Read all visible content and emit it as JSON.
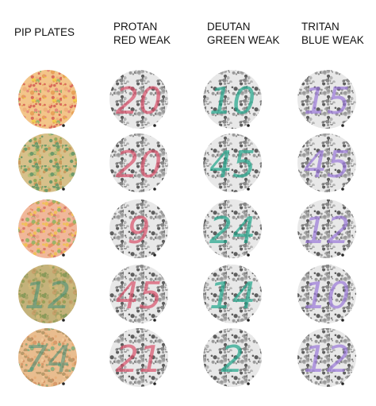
{
  "headers": [
    [
      "PIP  PLATES"
    ],
    [
      "PROTAN",
      "RED WEAK"
    ],
    [
      "DEUTAN",
      "GREEN WEAK"
    ],
    [
      "TRITAN",
      "BLUE WEAK"
    ]
  ],
  "rows": [
    [
      null,
      "20",
      "10",
      "15"
    ],
    [
      null,
      "20",
      "45",
      "45"
    ],
    [
      null,
      "9",
      "24",
      "12"
    ],
    [
      "12",
      "45",
      "14",
      "10"
    ],
    [
      "74",
      "21",
      "2",
      "12"
    ]
  ]
}
